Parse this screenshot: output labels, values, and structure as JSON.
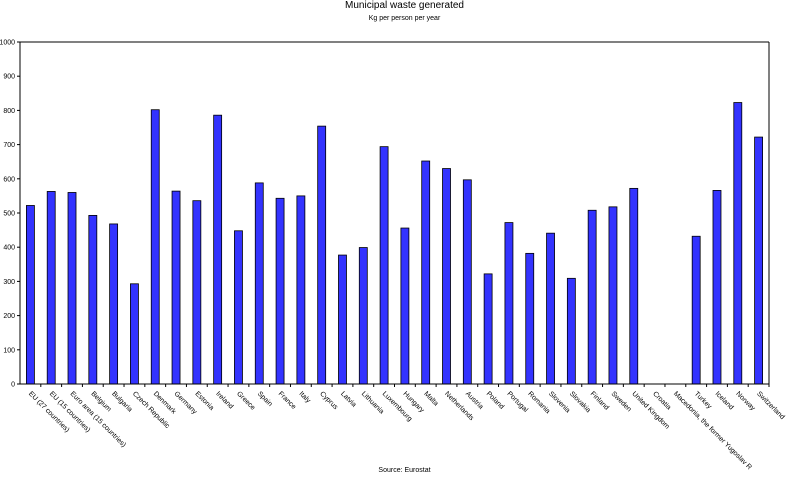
{
  "chart_data": {
    "type": "bar",
    "title": "Municipal waste generated",
    "subtitle": "Kg per person per year",
    "source": "Source: Eurostat",
    "xlabel": "",
    "ylabel": "",
    "ylim": [
      0,
      1000
    ],
    "yticks": [
      0,
      100,
      200,
      300,
      400,
      500,
      600,
      700,
      800,
      900,
      1000
    ],
    "grid": false,
    "legend": "none",
    "bar_color": "#3333ff",
    "bar_edge_color": "#000000",
    "categories": [
      "EU (27 countries)",
      "EU (15 countries)",
      "Euro area (15 countries)",
      "Belgium",
      "Bulgaria",
      "Czech Republic",
      "Denmark",
      "Germany",
      "Estonia",
      "Ireland",
      "Greece",
      "Spain",
      "France",
      "Italy",
      "Cyprus",
      "Latvia",
      "Lithuania",
      "Luxembourg",
      "Hungary",
      "Malta",
      "Netherlands",
      "Austria",
      "Poland",
      "Portugal",
      "Romania",
      "Slovenia",
      "Slovakia",
      "Finland",
      "Sweden",
      "United Kingdom",
      "Croatia",
      "Macedonia, the former Yugoslav R",
      "Turkey",
      "Iceland",
      "Norway",
      "Switzerland"
    ],
    "values": [
      522,
      563,
      560,
      493,
      468,
      293,
      802,
      564,
      536,
      786,
      448,
      588,
      543,
      550,
      754,
      377,
      399,
      694,
      456,
      652,
      630,
      597,
      322,
      472,
      382,
      441,
      309,
      508,
      518,
      572,
      null,
      null,
      432,
      566,
      823,
      722
    ]
  }
}
